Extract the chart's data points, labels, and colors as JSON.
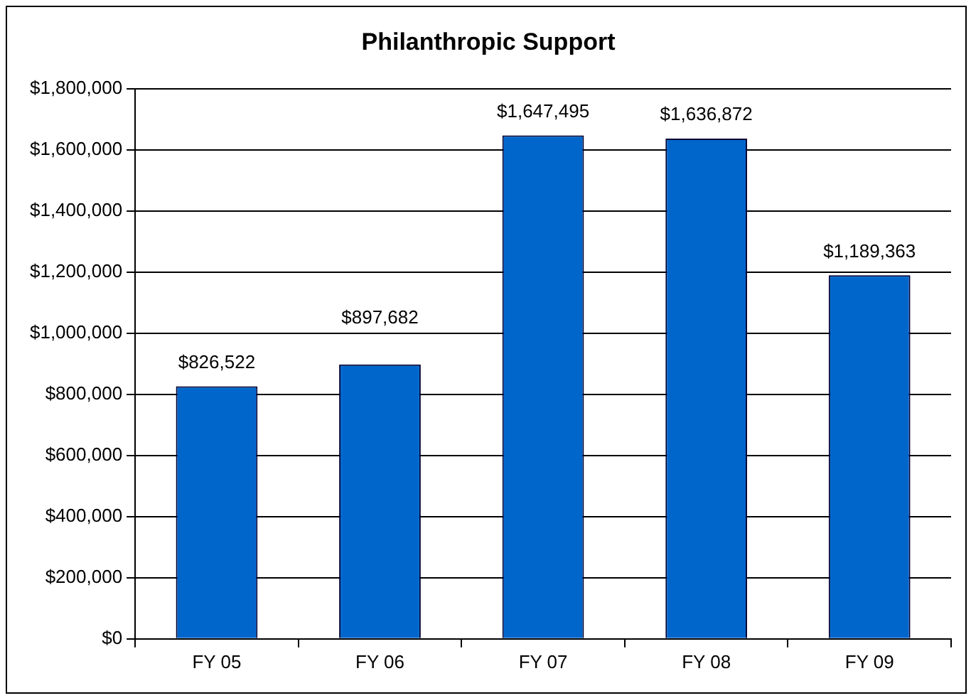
{
  "chart_data": {
    "type": "bar",
    "title": "Philanthropic Support",
    "categories": [
      "FY 05",
      "FY 06",
      "FY 07",
      "FY 08",
      "FY 09"
    ],
    "values": [
      826522,
      897682,
      1647495,
      1636872,
      1189363
    ],
    "value_labels": [
      "$826,522",
      "$897,682",
      "$1,647,495",
      "$1,636,872",
      "$1,189,363"
    ],
    "color": "#0066cc",
    "ylim": [
      0,
      1800000
    ],
    "yticks": [
      {
        "value": 0,
        "label": "$0"
      },
      {
        "value": 200000,
        "label": "$200,000"
      },
      {
        "value": 400000,
        "label": "$400,000"
      },
      {
        "value": 600000,
        "label": "$600,000"
      },
      {
        "value": 800000,
        "label": "$800,000"
      },
      {
        "value": 1000000,
        "label": "$1,000,000"
      },
      {
        "value": 1200000,
        "label": "$1,200,000"
      },
      {
        "value": 1400000,
        "label": "$1,400,000"
      },
      {
        "value": 1600000,
        "label": "$1,600,000"
      },
      {
        "value": 1800000,
        "label": "$1,800,000"
      }
    ],
    "grid": "y",
    "legend": false
  }
}
